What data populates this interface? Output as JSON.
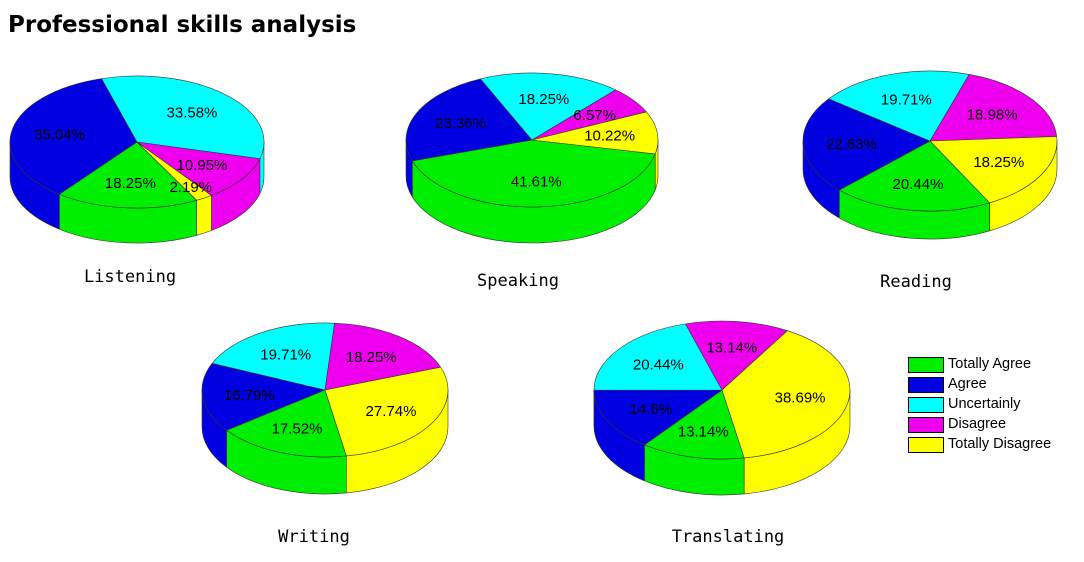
{
  "page": {
    "title": "Professional skills analysis"
  },
  "colors": {
    "Totally Agree": "#00ee00",
    "Agree": "#0000e0",
    "Uncertainly": "#00ffff",
    "Disagree": "#ee00ee",
    "Totally Disagree": "#ffff00"
  },
  "legend": {
    "position": "right",
    "items": [
      "Totally Agree",
      "Agree",
      "Uncertainly",
      "Disagree",
      "Totally Disagree"
    ]
  },
  "chart_data": [
    {
      "type": "pie",
      "name": "Listening",
      "labels": [
        "Totally Agree",
        "Agree",
        "Uncertainly",
        "Disagree",
        "Totally Disagree"
      ],
      "values": [
        18.25,
        35.04,
        33.58,
        10.95,
        2.19
      ],
      "display": [
        "18.25%",
        "35.04%",
        "33.58%",
        "10.95%",
        "2.19%"
      ]
    },
    {
      "type": "pie",
      "name": "Speaking",
      "labels": [
        "Totally Agree",
        "Agree",
        "Uncertainly",
        "Disagree",
        "Totally Disagree"
      ],
      "values": [
        41.61,
        23.36,
        18.25,
        6.57,
        10.22
      ],
      "display": [
        "41.61%",
        "23.36%",
        "18.25%",
        "6.57%",
        "10.22%"
      ]
    },
    {
      "type": "pie",
      "name": "Reading",
      "labels": [
        "Totally Agree",
        "Agree",
        "Uncertainly",
        "Disagree",
        "Totally Disagree"
      ],
      "values": [
        20.44,
        22.63,
        19.71,
        18.98,
        18.25
      ],
      "display": [
        "20.44%",
        "22.63%",
        "19.71%",
        "18.98%",
        "18.25%"
      ]
    },
    {
      "type": "pie",
      "name": "Writing",
      "labels": [
        "Totally Agree",
        "Agree",
        "Uncertainly",
        "Disagree",
        "Totally Disagree"
      ],
      "values": [
        17.52,
        16.79,
        19.71,
        18.25,
        27.74
      ],
      "display": [
        "17.52%",
        "16.79%",
        "19.71%",
        "18.25%",
        "27.74%"
      ]
    },
    {
      "type": "pie",
      "name": "Translating",
      "labels": [
        "Totally Agree",
        "Agree",
        "Uncertainly",
        "Disagree",
        "Totally Disagree"
      ],
      "values": [
        13.14,
        14.6,
        20.44,
        13.14,
        38.69
      ],
      "display": [
        "13.14%",
        "14.6%",
        "20.44%",
        "13.14%",
        "38.69%"
      ]
    }
  ]
}
